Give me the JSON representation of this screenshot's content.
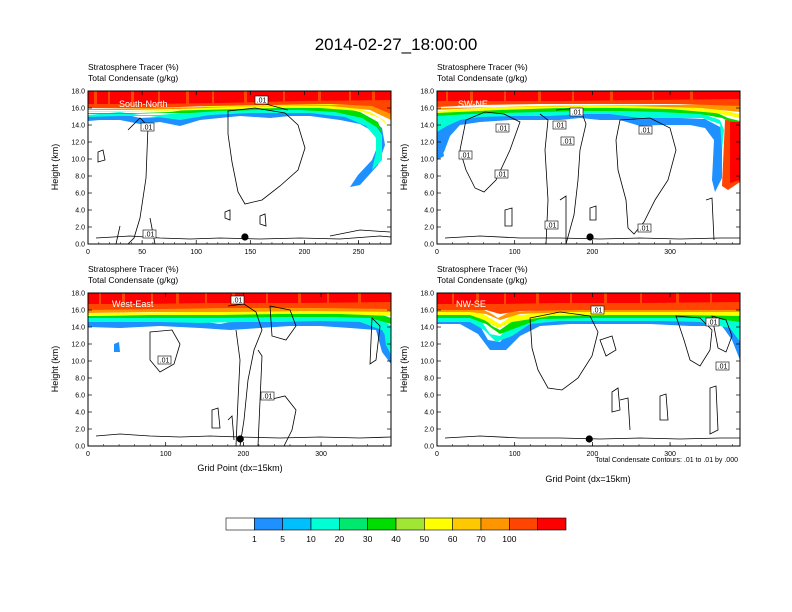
{
  "figure": {
    "title": "2014-02-27_18:00:00",
    "header_line1": "Stratosphere Tracer   (%)",
    "header_line2": "Total Condensate   (g/kg)",
    "ylabel": "Height (km)",
    "xlabel": "Grid Point (dx=15km)",
    "contour_note": "Total Condensate Contours: .01 to .01 by .000",
    "contour_label": ".01"
  },
  "chart_data": {
    "type": "heatmap",
    "y_ticks": [
      "0.0",
      "2.0",
      "4.0",
      "6.0",
      "8.0",
      "10.0",
      "12.0",
      "14.0",
      "16.0",
      "18.0"
    ],
    "ylim": [
      0,
      18
    ],
    "colorbar": {
      "labels": [
        "1",
        "5",
        "10",
        "20",
        "30",
        "40",
        "50",
        "60",
        "70",
        "100"
      ],
      "colors": [
        "#ffffff",
        "#1e90ff",
        "#00bfff",
        "#00ffd5",
        "#00e86e",
        "#00dd00",
        "#a0e632",
        "#ffff00",
        "#ffc800",
        "#ff9600",
        "#ff4500",
        "#ff0000"
      ]
    },
    "panels": [
      {
        "name": "South-North",
        "xlim": [
          0,
          280
        ],
        "x_ticks": [
          "0",
          "50",
          "100",
          "150",
          "200",
          "250"
        ],
        "x_tick_values": [
          0,
          50,
          100,
          150,
          200,
          250
        ],
        "marker_x": 145,
        "show_xlabel": false
      },
      {
        "name": "SW-NE",
        "xlim": [
          0,
          390
        ],
        "x_ticks": [
          "0",
          "100",
          "200",
          "300"
        ],
        "x_tick_values": [
          0,
          100,
          200,
          300
        ],
        "marker_x": 197,
        "show_xlabel": false
      },
      {
        "name": "West-East",
        "xlim": [
          0,
          390
        ],
        "x_ticks": [
          "0",
          "100",
          "200",
          "300"
        ],
        "x_tick_values": [
          0,
          100,
          200,
          300
        ],
        "marker_x": 196,
        "show_xlabel": true
      },
      {
        "name": "NW-SE",
        "xlim": [
          0,
          390
        ],
        "x_ticks": [
          "0",
          "100",
          "200",
          "300"
        ],
        "x_tick_values": [
          0,
          100,
          200,
          300
        ],
        "marker_x": 196,
        "show_xlabel": true
      }
    ]
  }
}
